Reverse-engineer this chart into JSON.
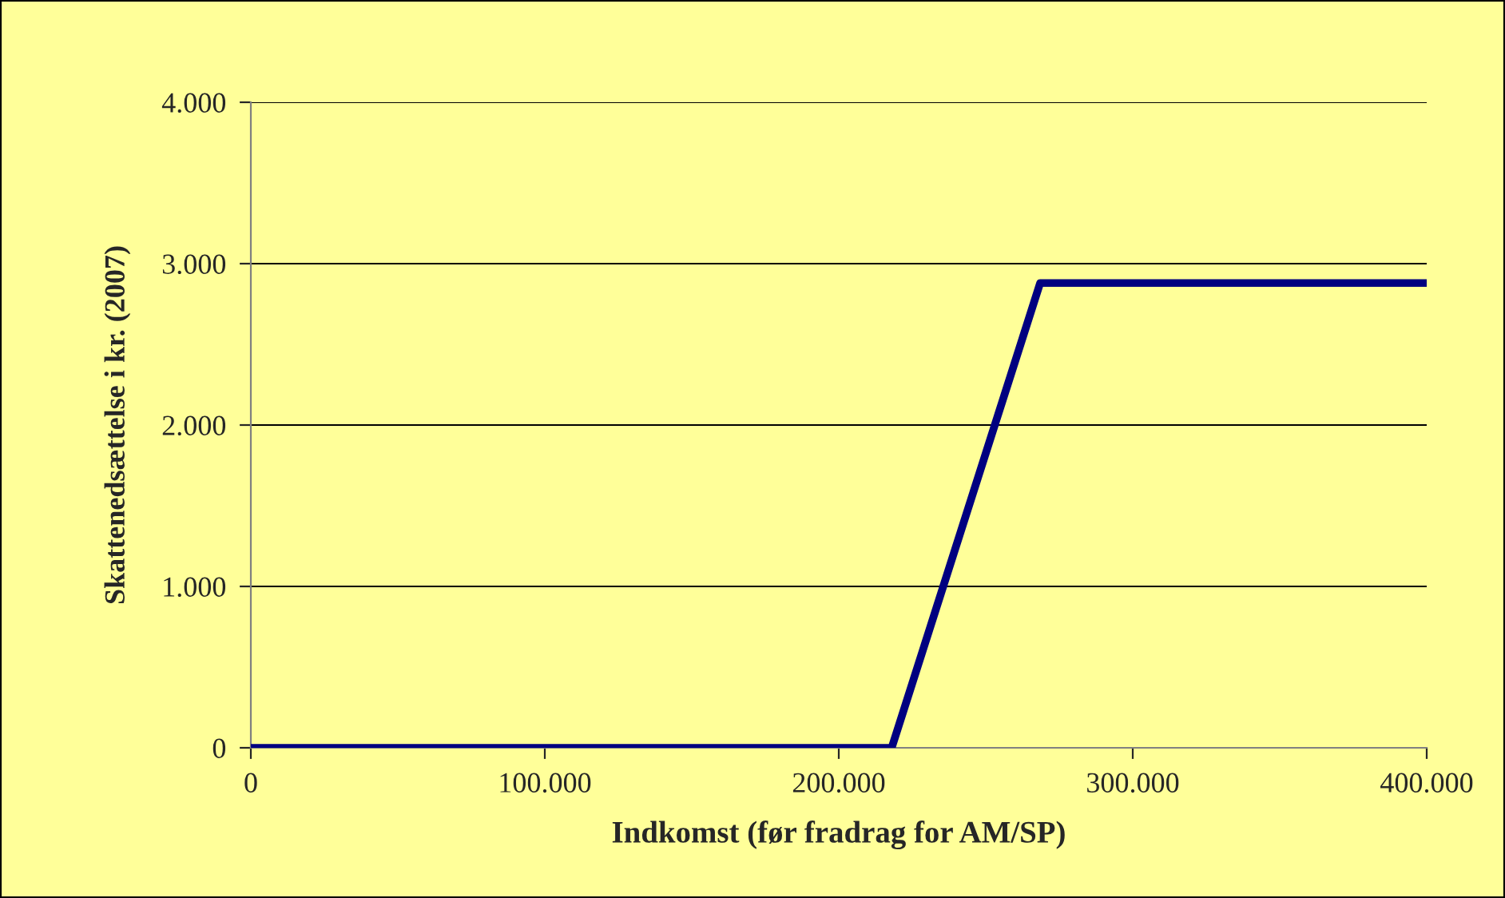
{
  "chart_data": {
    "type": "line",
    "xlabel": "Indkomst (før fradrag for AM/SP)",
    "ylabel": "Skattenedsættelse i kr. (2007)",
    "x": [
      0,
      218000,
      268500,
      400000
    ],
    "series": [
      {
        "color": "#000080",
        "values": [
          0,
          0,
          2880,
          2880
        ]
      }
    ],
    "xlim": [
      0,
      400000
    ],
    "ylim": [
      0,
      4000
    ],
    "xticks": [
      0,
      {
        "value": 100000,
        "label": "100.000"
      },
      {
        "value": 200000,
        "label": "200.000"
      },
      {
        "value": 300000,
        "label": "300.000"
      },
      {
        "value": 400000,
        "label": "400.000"
      }
    ],
    "yticks": [
      0,
      {
        "value": 1000,
        "label": "1.000"
      },
      {
        "value": 2000,
        "label": "2.000"
      },
      {
        "value": 3000,
        "label": "3.000"
      },
      {
        "value": 4000,
        "label": "4.000"
      }
    ],
    "grid": "y",
    "legend": false,
    "marker": "none",
    "line_style": "solid"
  }
}
